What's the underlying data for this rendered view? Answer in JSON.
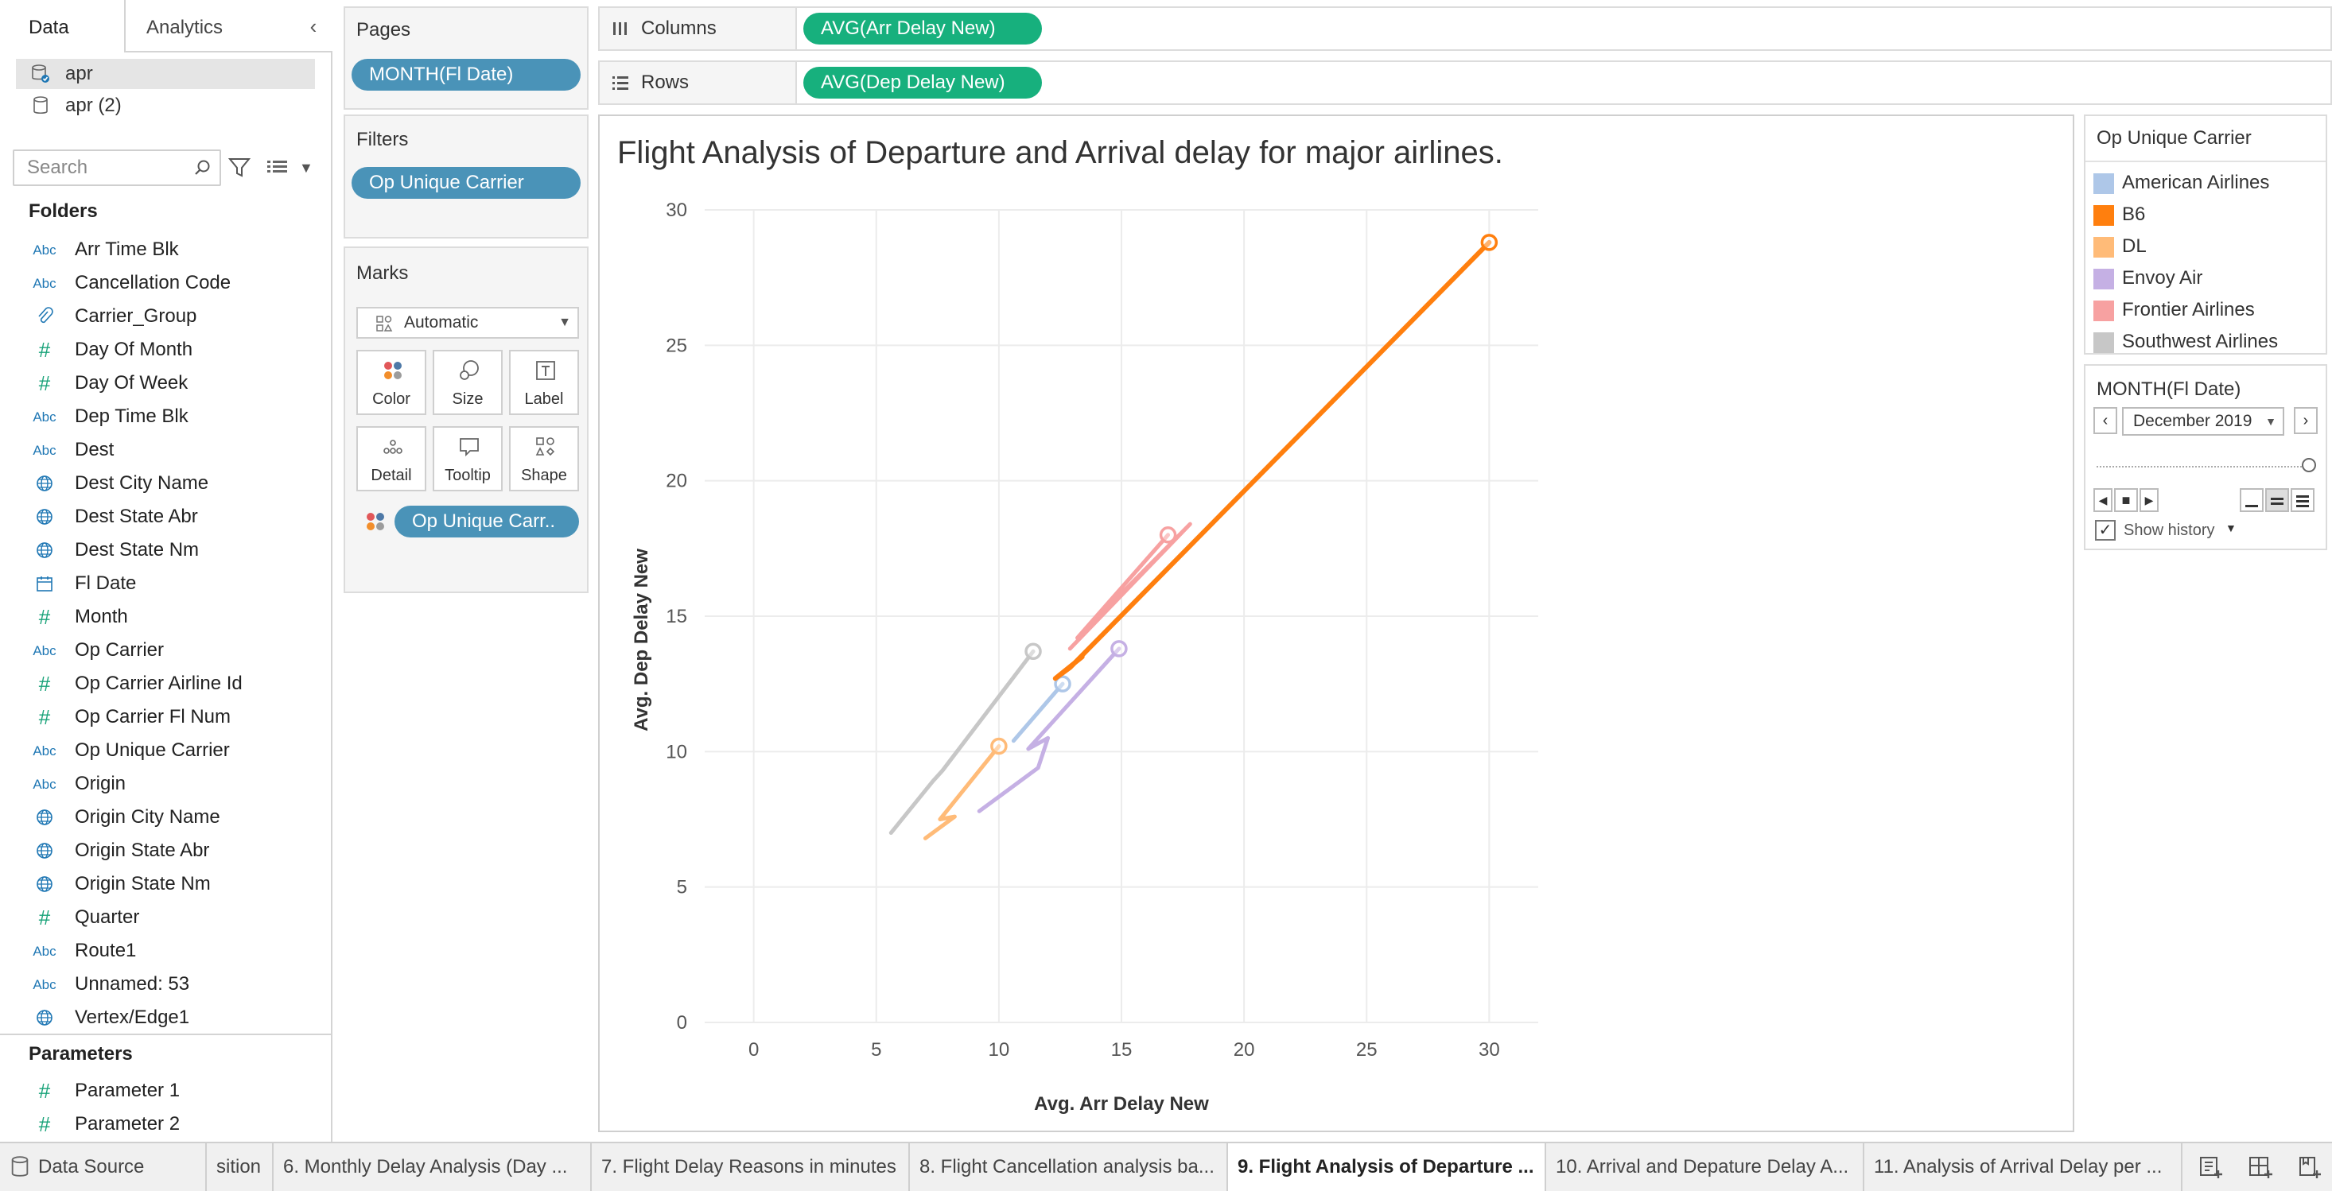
{
  "data_pane": {
    "tab_data": "Data",
    "tab_analytics": "Analytics",
    "datasources": [
      "apr",
      "apr (2)"
    ],
    "search_placeholder": "Search",
    "folders_title": "Folders",
    "fields": [
      {
        "type": "abc",
        "name": "Arr Time Blk"
      },
      {
        "type": "abc",
        "name": "Cancellation Code"
      },
      {
        "type": "clip",
        "name": "Carrier_Group"
      },
      {
        "type": "hash",
        "name": "Day Of Month"
      },
      {
        "type": "hash",
        "name": "Day Of Week"
      },
      {
        "type": "abc",
        "name": "Dep Time Blk"
      },
      {
        "type": "abc",
        "name": "Dest"
      },
      {
        "type": "globe",
        "name": "Dest City Name"
      },
      {
        "type": "globe",
        "name": "Dest State Abr"
      },
      {
        "type": "globe",
        "name": "Dest State Nm"
      },
      {
        "type": "cal",
        "name": "Fl Date"
      },
      {
        "type": "hash",
        "name": "Month"
      },
      {
        "type": "abc",
        "name": "Op Carrier"
      },
      {
        "type": "hash",
        "name": "Op Carrier Airline Id"
      },
      {
        "type": "hash",
        "name": "Op Carrier Fl Num"
      },
      {
        "type": "abc",
        "name": "Op Unique Carrier"
      },
      {
        "type": "abc",
        "name": "Origin"
      },
      {
        "type": "globe",
        "name": "Origin City Name"
      },
      {
        "type": "globe",
        "name": "Origin State Abr"
      },
      {
        "type": "globe",
        "name": "Origin State Nm"
      },
      {
        "type": "hash",
        "name": "Quarter"
      },
      {
        "type": "abc",
        "name": "Route1"
      },
      {
        "type": "abc",
        "name": "Unnamed: 53"
      },
      {
        "type": "globe",
        "name": "Vertex/Edge1"
      }
    ],
    "parameters_title": "Parameters",
    "parameters": [
      "Parameter 1",
      "Parameter 2"
    ]
  },
  "shelves": {
    "pages_title": "Pages",
    "pages_pill": "MONTH(Fl Date)",
    "filters_title": "Filters",
    "filters_pill": "Op Unique Carrier",
    "marks_title": "Marks",
    "marks_type": "Automatic",
    "mark_buttons": [
      "Color",
      "Size",
      "Label",
      "Detail",
      "Tooltip",
      "Shape"
    ],
    "marks_pill": "Op Unique Carr..",
    "columns_label": "Columns",
    "columns_pill": "AVG(Arr Delay New)",
    "rows_label": "Rows",
    "rows_pill": "AVG(Dep Delay New)"
  },
  "legend": {
    "title": "Op Unique Carrier",
    "items": [
      {
        "name": "American Airlines",
        "color": "#aec7e8"
      },
      {
        "name": "B6",
        "color": "#ff7f0e"
      },
      {
        "name": "DL",
        "color": "#ffbb78"
      },
      {
        "name": "Envoy Air",
        "color": "#c5b0e4"
      },
      {
        "name": "Frontier Airlines",
        "color": "#f7a1a1"
      },
      {
        "name": "Southwest Airlines",
        "color": "#c7c7c7"
      }
    ]
  },
  "pages_control": {
    "title": "MONTH(Fl Date)",
    "selected": "December 2019",
    "show_history": "Show history"
  },
  "bottom_tabs": {
    "data_source": "Data Source",
    "sheets": [
      "sition",
      "6. Monthly Delay Analysis (Day ...",
      "7. Flight Delay Reasons in minutes",
      "8. Flight Cancellation analysis ba...",
      "9. Flight Analysis of Departure ...",
      "10. Arrival and Depature Delay A...",
      "11. Analysis of Arrival Delay per ..."
    ],
    "active_index": 4
  },
  "chart_data": {
    "type": "line",
    "title": "Flight Analysis of Departure and Arrival delay for major airlines.",
    "xlabel": "Avg. Arr Delay New",
    "ylabel": "Avg. Dep Delay New",
    "xlim": [
      -2,
      32
    ],
    "ylim": [
      0,
      30
    ],
    "xticks": [
      0,
      5,
      10,
      15,
      20,
      25,
      30
    ],
    "yticks": [
      0,
      5,
      10,
      15,
      20,
      25,
      30
    ],
    "grid": true,
    "series": [
      {
        "name": "Southwest Airlines",
        "color": "#c7c7c7",
        "width": 5,
        "points": [
          [
            5.6,
            7.0
          ],
          [
            7.3,
            8.9
          ],
          [
            7.7,
            9.3
          ],
          [
            11.4,
            13.7
          ]
        ],
        "current": [
          11.4,
          13.7
        ]
      },
      {
        "name": "DL",
        "color": "#ffbb78",
        "width": 5,
        "points": [
          [
            7.0,
            6.8
          ],
          [
            8.2,
            7.6
          ],
          [
            7.6,
            7.5
          ],
          [
            10.0,
            10.2
          ]
        ],
        "current": [
          10.0,
          10.2
        ]
      },
      {
        "name": "Envoy Air",
        "color": "#c5b0e4",
        "width": 5,
        "points": [
          [
            9.2,
            7.8
          ],
          [
            11.6,
            9.4
          ],
          [
            12.0,
            10.5
          ],
          [
            11.2,
            10.1
          ],
          [
            14.9,
            13.8
          ]
        ],
        "current": [
          14.9,
          13.8
        ]
      },
      {
        "name": "American Airlines",
        "color": "#aec7e8",
        "width": 5,
        "points": [
          [
            10.6,
            10.4
          ],
          [
            12.6,
            12.5
          ]
        ],
        "current": [
          12.6,
          12.5
        ]
      },
      {
        "name": "Frontier Airlines",
        "color": "#f7a1a1",
        "width": 5,
        "points": [
          [
            12.9,
            13.8
          ],
          [
            17.8,
            18.4
          ],
          [
            13.2,
            14.2
          ],
          [
            16.9,
            18.0
          ]
        ],
        "current": [
          16.9,
          18.0
        ]
      },
      {
        "name": "B6",
        "color": "#ff7f0e",
        "width": 6,
        "points": [
          [
            13.4,
            13.5
          ],
          [
            12.3,
            12.7
          ],
          [
            12.9,
            13.1
          ],
          [
            30.0,
            28.8
          ]
        ],
        "current": [
          30.0,
          28.8
        ]
      }
    ]
  }
}
